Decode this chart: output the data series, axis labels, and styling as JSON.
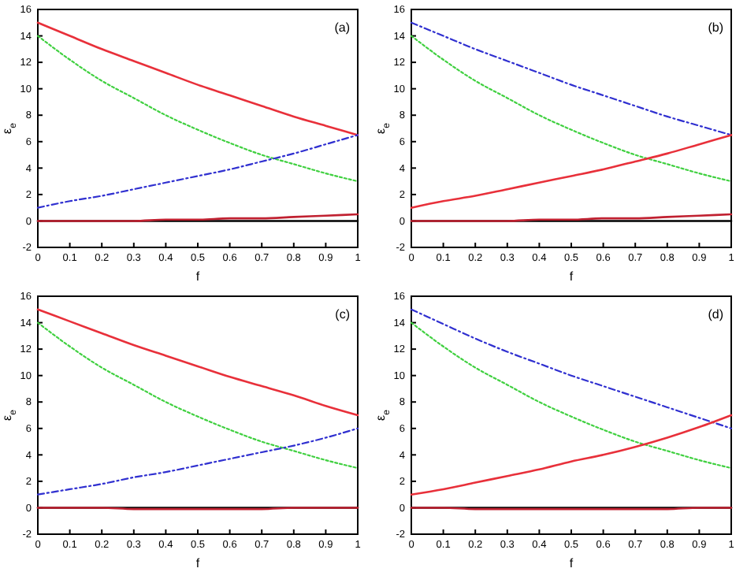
{
  "chart_data": [
    {
      "type": "line",
      "xlabel": "f",
      "ylabel": "ε$_{e}$",
      "annotations": [
        "(a)"
      ],
      "x": [
        0,
        0.1,
        0.2,
        0.3,
        0.4,
        0.5,
        0.6,
        0.7,
        0.8,
        0.9,
        1
      ],
      "xlim": [
        0,
        1
      ],
      "xticks": [
        0,
        0.1,
        0.2,
        0.3,
        0.4,
        0.5,
        0.6,
        0.7,
        0.8,
        0.9,
        1
      ],
      "ylim": [
        -2,
        16
      ],
      "yticks": [
        -2,
        0,
        2,
        4,
        6,
        8,
        10,
        12,
        14,
        16
      ],
      "series": [
        {
          "color": "#000000",
          "line_style": "solid",
          "values": [
            0,
            0,
            0,
            0,
            0,
            0,
            0,
            0,
            0,
            0,
            0
          ]
        },
        {
          "color": "#e8303a",
          "line_style": "solid",
          "values": [
            15,
            14.0,
            13.0,
            12.1,
            11.2,
            10.3,
            9.5,
            8.7,
            7.9,
            7.2,
            6.5
          ]
        },
        {
          "color": "#40d040",
          "line_style": "dotted",
          "values": [
            14,
            12.2,
            10.6,
            9.3,
            8.0,
            6.9,
            5.9,
            5.0,
            4.3,
            3.6,
            3.0
          ]
        },
        {
          "color": "#3030d0",
          "line_style": "dashed",
          "values": [
            1,
            1.5,
            1.9,
            2.4,
            2.9,
            3.4,
            3.9,
            4.5,
            5.1,
            5.8,
            6.5
          ]
        },
        {
          "color": "#c02030",
          "line_style": "solid",
          "values": [
            0,
            0,
            0,
            0,
            0.1,
            0.1,
            0.2,
            0.2,
            0.3,
            0.4,
            0.5
          ]
        }
      ]
    },
    {
      "type": "line",
      "xlabel": "f",
      "ylabel": "ε$_{e}$",
      "annotations": [
        "(b)"
      ],
      "x": [
        0,
        0.1,
        0.2,
        0.3,
        0.4,
        0.5,
        0.6,
        0.7,
        0.8,
        0.9,
        1
      ],
      "xlim": [
        0,
        1
      ],
      "xticks": [
        0,
        0.1,
        0.2,
        0.3,
        0.4,
        0.5,
        0.6,
        0.7,
        0.8,
        0.9,
        1
      ],
      "ylim": [
        -2,
        16
      ],
      "yticks": [
        -2,
        0,
        2,
        4,
        6,
        8,
        10,
        12,
        14,
        16
      ],
      "series": [
        {
          "color": "#000000",
          "line_style": "solid",
          "values": [
            0,
            0,
            0,
            0,
            0,
            0,
            0,
            0,
            0,
            0,
            0
          ]
        },
        {
          "color": "#3030d0",
          "line_style": "dashed",
          "values": [
            15,
            14.0,
            13.0,
            12.1,
            11.2,
            10.3,
            9.5,
            8.7,
            7.9,
            7.2,
            6.5
          ]
        },
        {
          "color": "#40d040",
          "line_style": "dotted",
          "values": [
            14,
            12.2,
            10.6,
            9.3,
            8.0,
            6.9,
            5.9,
            5.0,
            4.3,
            3.6,
            3.0
          ]
        },
        {
          "color": "#e8303a",
          "line_style": "solid",
          "values": [
            1,
            1.5,
            1.9,
            2.4,
            2.9,
            3.4,
            3.9,
            4.5,
            5.1,
            5.8,
            6.5
          ]
        },
        {
          "color": "#c02030",
          "line_style": "solid",
          "values": [
            0,
            0,
            0,
            0,
            0.1,
            0.1,
            0.2,
            0.2,
            0.3,
            0.4,
            0.5
          ]
        }
      ]
    },
    {
      "type": "line",
      "xlabel": "f",
      "ylabel": "ε$_{e}$",
      "annotations": [
        "(c)"
      ],
      "x": [
        0,
        0.1,
        0.2,
        0.3,
        0.4,
        0.5,
        0.6,
        0.7,
        0.8,
        0.9,
        1
      ],
      "xlim": [
        0,
        1
      ],
      "xticks": [
        0,
        0.1,
        0.2,
        0.3,
        0.4,
        0.5,
        0.6,
        0.7,
        0.8,
        0.9,
        1
      ],
      "ylim": [
        -2,
        16
      ],
      "yticks": [
        -2,
        0,
        2,
        4,
        6,
        8,
        10,
        12,
        14,
        16
      ],
      "series": [
        {
          "color": "#000000",
          "line_style": "solid",
          "values": [
            0,
            0,
            0,
            0,
            0,
            0,
            0,
            0,
            0,
            0,
            0
          ]
        },
        {
          "color": "#e8303a",
          "line_style": "solid",
          "values": [
            15,
            14.1,
            13.2,
            12.3,
            11.5,
            10.7,
            9.9,
            9.2,
            8.5,
            7.7,
            7.0
          ]
        },
        {
          "color": "#40d040",
          "line_style": "dotted",
          "values": [
            14,
            12.2,
            10.6,
            9.3,
            8.0,
            6.9,
            5.9,
            5.0,
            4.3,
            3.6,
            3.0
          ]
        },
        {
          "color": "#3030d0",
          "line_style": "dashed",
          "values": [
            1,
            1.4,
            1.8,
            2.3,
            2.7,
            3.2,
            3.7,
            4.2,
            4.7,
            5.3,
            6.0
          ]
        },
        {
          "color": "#c02030",
          "line_style": "solid",
          "values": [
            0,
            0,
            0,
            -0.1,
            -0.1,
            -0.1,
            -0.1,
            -0.1,
            0,
            0,
            0
          ]
        }
      ]
    },
    {
      "type": "line",
      "xlabel": "f",
      "ylabel": "ε$_{e}$",
      "annotations": [
        "(d)"
      ],
      "x": [
        0,
        0.1,
        0.2,
        0.3,
        0.4,
        0.5,
        0.6,
        0.7,
        0.8,
        0.9,
        1
      ],
      "xlim": [
        0,
        1
      ],
      "xticks": [
        0,
        0.1,
        0.2,
        0.3,
        0.4,
        0.5,
        0.6,
        0.7,
        0.8,
        0.9,
        1
      ],
      "ylim": [
        -2,
        16
      ],
      "yticks": [
        -2,
        0,
        2,
        4,
        6,
        8,
        10,
        12,
        14,
        16
      ],
      "series": [
        {
          "color": "#000000",
          "line_style": "solid",
          "values": [
            0,
            0,
            0,
            0,
            0,
            0,
            0,
            0,
            0,
            0,
            0
          ]
        },
        {
          "color": "#3030d0",
          "line_style": "dashed",
          "values": [
            15,
            13.9,
            12.8,
            11.8,
            10.9,
            10.0,
            9.2,
            8.4,
            7.6,
            6.8,
            6.0
          ]
        },
        {
          "color": "#40d040",
          "line_style": "dotted",
          "values": [
            14,
            12.2,
            10.6,
            9.3,
            8.0,
            6.9,
            5.9,
            5.0,
            4.3,
            3.6,
            3.0
          ]
        },
        {
          "color": "#e8303a",
          "line_style": "solid",
          "values": [
            1,
            1.4,
            1.9,
            2.4,
            2.9,
            3.5,
            4.0,
            4.6,
            5.3,
            6.1,
            7.0
          ]
        },
        {
          "color": "#c02030",
          "line_style": "solid",
          "values": [
            0,
            0,
            -0.1,
            -0.1,
            -0.1,
            -0.1,
            -0.1,
            -0.1,
            -0.1,
            0,
            0
          ]
        }
      ]
    }
  ]
}
